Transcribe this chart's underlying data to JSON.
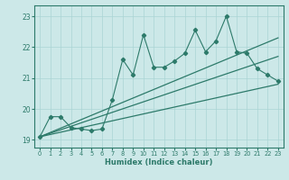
{
  "xlabel": "Humidex (Indice chaleur)",
  "ylabel": "",
  "bg_color": "#cce8e8",
  "line_color": "#2d7a6a",
  "xlim": [
    -0.5,
    23.5
  ],
  "ylim": [
    18.75,
    23.35
  ],
  "yticks": [
    19,
    20,
    21,
    22,
    23
  ],
  "xticks": [
    0,
    1,
    2,
    3,
    4,
    5,
    6,
    7,
    8,
    9,
    10,
    11,
    12,
    13,
    14,
    15,
    16,
    17,
    18,
    19,
    20,
    21,
    22,
    23
  ],
  "jagged_x": [
    0,
    1,
    2,
    3,
    4,
    5,
    6,
    7,
    8,
    9,
    10,
    11,
    12,
    13,
    14,
    15,
    16,
    17,
    18,
    19,
    20,
    21,
    22,
    23
  ],
  "jagged_y": [
    19.1,
    19.75,
    19.75,
    19.4,
    19.35,
    19.3,
    19.35,
    20.3,
    21.6,
    21.1,
    22.4,
    21.35,
    21.35,
    21.55,
    21.8,
    22.55,
    21.85,
    22.2,
    23.0,
    21.85,
    21.8,
    21.3,
    21.1,
    20.9
  ],
  "upper_line_x": [
    0,
    23
  ],
  "upper_line_y": [
    19.1,
    22.3
  ],
  "mid_line_x": [
    0,
    23
  ],
  "mid_line_y": [
    19.1,
    21.7
  ],
  "lower_line_x": [
    0,
    23
  ],
  "lower_line_y": [
    19.1,
    20.8
  ],
  "grid_color": "#aad4d4"
}
